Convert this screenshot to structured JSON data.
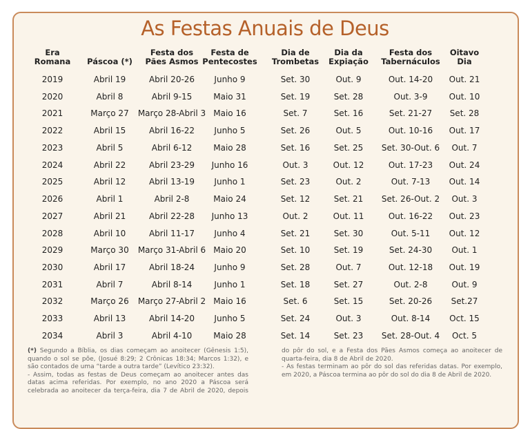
{
  "title": "As Festas Anuais de Deus",
  "table": {
    "headers": [
      [
        "Era",
        "Romana"
      ],
      [
        "Páscoa (*)"
      ],
      [
        "Festa dos",
        "Pães Asmos"
      ],
      [
        "Festa de",
        "Pentecostes"
      ],
      [
        "Dia de",
        "Trombetas"
      ],
      [
        "Dia da",
        "Expiação"
      ],
      [
        "Festa dos",
        "Tabernáculos"
      ],
      [
        "Oitavo",
        "Dia"
      ]
    ],
    "rows": [
      [
        "2019",
        "Abril 19",
        "Abril 20-26",
        "Junho 9",
        "Set. 30",
        "Out. 9",
        "Out. 14-20",
        "Out. 21"
      ],
      [
        "2020",
        "Abril 8",
        "Abril 9-15",
        "Maio 31",
        "Set. 19",
        "Set. 28",
        "Out. 3-9",
        "Out. 10"
      ],
      [
        "2021",
        "Março 27",
        "Março 28-Abril 3",
        "Maio 16",
        "Set. 7",
        "Set. 16",
        "Set. 21-27",
        "Set. 28"
      ],
      [
        "2022",
        "Abril 15",
        "Abril 16-22",
        "Junho 5",
        "Set. 26",
        "Out. 5",
        "Out. 10-16",
        "Out. 17"
      ],
      [
        "2023",
        "Abril 5",
        "Abril 6-12",
        "Maio 28",
        "Set. 16",
        "Set. 25",
        "Set. 30-Out. 6",
        "Out. 7"
      ],
      [
        "2024",
        "Abril 22",
        "Abril 23-29",
        "Junho 16",
        "Out. 3",
        "Out. 12",
        "Out. 17-23",
        "Out. 24"
      ],
      [
        "2025",
        "Abril 12",
        "Abril 13-19",
        "Junho 1",
        "Set. 23",
        "Out. 2",
        "Out. 7-13",
        "Out. 14"
      ],
      [
        "2026",
        "Abril 1",
        "Abril 2-8",
        "Maio 24",
        "Set. 12",
        "Set. 21",
        "Set. 26-Out. 2",
        "Out. 3"
      ],
      [
        "2027",
        "Abril 21",
        "Abril 22-28",
        "Junho 13",
        "Out. 2",
        "Out. 11",
        "Out. 16-22",
        "Out. 23"
      ],
      [
        "2028",
        "Abril 10",
        "Abril 11-17",
        "Junho 4",
        "Set. 21",
        "Set. 30",
        "Out. 5-11",
        "Out. 12"
      ],
      [
        "2029",
        "Março 30",
        "Março 31-Abril 6",
        "Maio 20",
        "Set. 10",
        "Set. 19",
        "Set. 24-30",
        "Out. 1"
      ],
      [
        "2030",
        "Abril 17",
        "Abril 18-24",
        "Junho 9",
        "Set. 28",
        "Out. 7",
        "Out. 12-18",
        "Out. 19"
      ],
      [
        "2031",
        "Abril 7",
        "Abril 8-14",
        "Junho 1",
        "Set. 18",
        "Set. 27",
        "Out. 2-8",
        "Out. 9"
      ],
      [
        "2032",
        "Março 26",
        "Março 27-Abril 2",
        "Maio 16",
        "Set. 6",
        "Set. 15",
        "Set. 20-26",
        "Set.27"
      ],
      [
        "2033",
        "Abril 13",
        "Abril 14-20",
        "Junho 5",
        "Set. 24",
        "Out. 3",
        "Out. 8-14",
        "Oct. 15"
      ],
      [
        "2034",
        "Abril 3",
        "Abril 4-10",
        "Maio 28",
        "Set. 14",
        "Set. 23",
        "Set. 28-Out. 4",
        "Oct. 5"
      ]
    ]
  },
  "notes": {
    "marker": "(*)",
    "paragraphs": [
      "Segundo a Bíblia, os dias começam ao anoitecer (Gênesis 1:5), quando o sol se põe, (Josué 8:29; 2 Crônicas 18:34; Marcos 1:32), e são contados de uma “tarde a outra tarde” (Levítico 23:32).",
      "- Assim, todas as festas de Deus começam ao anoitecer antes das datas acima referidas. Por exemplo, no ano 2020 a Páscoa será celebrada ao anoitecer da terça-feira, dia 7 de Abril de 2020, depois do pôr do sol, e a Festa dos Pães Asmos começa ao anoitecer de quarta-feira, dia 8 de Abril de 2020.",
      "- As festas terminam ao pôr do sol das referidas datas. Por exemplo, em 2020, a Páscoa termina ao pôr do sol do dia 8 de Abril de 2020."
    ]
  }
}
